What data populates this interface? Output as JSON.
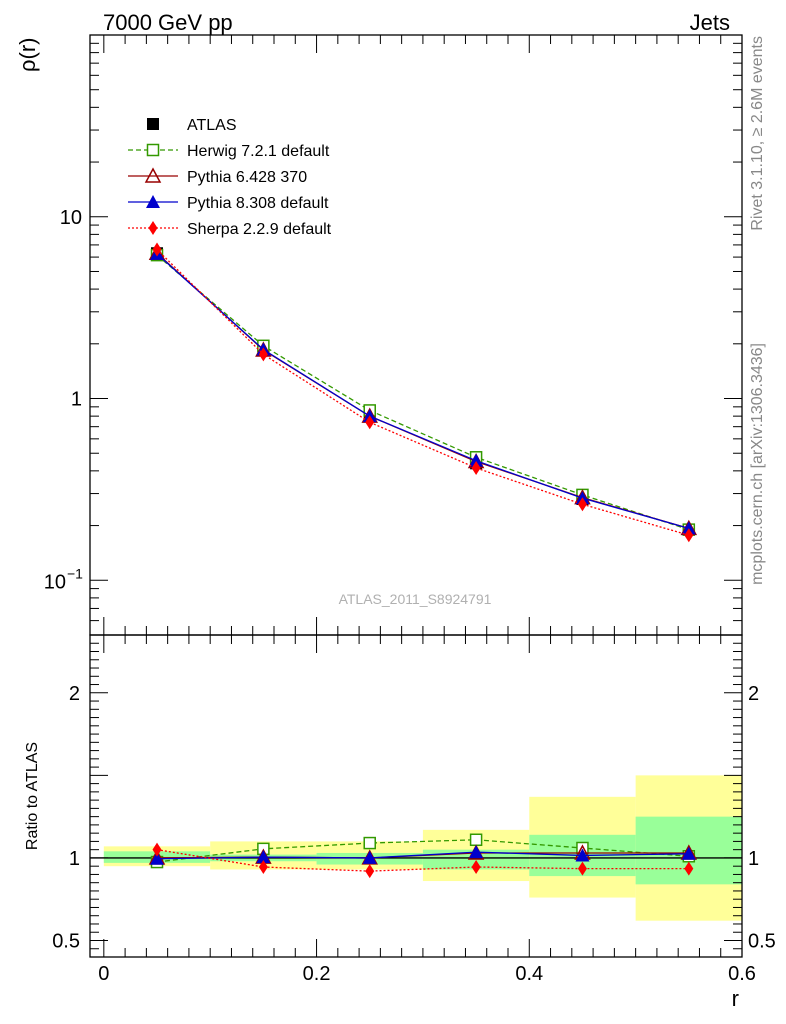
{
  "header": {
    "left": "7000 GeV pp",
    "right": "Jets"
  },
  "side_text": {
    "top": "Rivet 3.1.10, ≥ 2.6M events",
    "bottom": "mcplots.cern.ch [arXiv:1306.3436]"
  },
  "chart_data": [
    {
      "type": "line",
      "panel": "main",
      "ylabel": "ρ(r)",
      "yscale": "log",
      "ylim": [
        0.05,
        100
      ],
      "xlim": [
        -0.013,
        0.6
      ],
      "watermark": "ATLAS_2011_S8924791",
      "y_ticks": [
        {
          "value": 10,
          "label": "10"
        },
        {
          "value": 1,
          "label": "1"
        },
        {
          "value": 0.1,
          "label_base": "10",
          "label_exp": "−1"
        }
      ],
      "legend_position": "top-left",
      "x": [
        0.05,
        0.15,
        0.25,
        0.35,
        0.45,
        0.55
      ],
      "series": [
        {
          "name": "ATLAS",
          "color": "#000000",
          "marker": "filled-square",
          "line": "none",
          "values": [
            6.3,
            1.85,
            0.8,
            0.44,
            0.28,
            0.19
          ]
        },
        {
          "name": "Herwig 7.2.1 default",
          "color": "#339900",
          "marker": "open-square",
          "line": "dashed",
          "values": [
            6.15,
            1.95,
            0.86,
            0.475,
            0.295,
            0.19
          ]
        },
        {
          "name": "Pythia 6.428 370",
          "color": "#990000",
          "marker": "open-triangle",
          "line": "solid",
          "values": [
            6.3,
            1.85,
            0.8,
            0.45,
            0.285,
            0.193
          ]
        },
        {
          "name": "Pythia 8.308 default",
          "color": "#0000cc",
          "marker": "filled-triangle",
          "line": "solid",
          "values": [
            6.25,
            1.86,
            0.8,
            0.455,
            0.283,
            0.193
          ]
        },
        {
          "name": "Sherpa 2.2.9 default",
          "color": "#ff0000",
          "marker": "filled-diamond",
          "line": "dotted",
          "values": [
            6.6,
            1.75,
            0.74,
            0.415,
            0.262,
            0.177
          ]
        }
      ]
    },
    {
      "type": "line",
      "panel": "ratio",
      "ylabel": "Ratio to ATLAS",
      "xlabel": "r",
      "ylim": [
        0.4,
        2.35
      ],
      "xlim": [
        -0.013,
        0.6
      ],
      "y_ticks": [
        {
          "value": 0.5,
          "label": "0.5"
        },
        {
          "value": 1,
          "label": "1"
        },
        {
          "value": 2,
          "label": "2"
        }
      ],
      "x_ticks": [
        {
          "value": 0,
          "label": "0"
        },
        {
          "value": 0.2,
          "label": "0.2"
        },
        {
          "value": 0.4,
          "label": "0.4"
        },
        {
          "value": 0.6,
          "label": "0.6"
        }
      ],
      "bands": [
        {
          "x0": 0.0,
          "x1": 0.1,
          "stat": [
            0.97,
            1.04
          ],
          "total": [
            0.95,
            1.07
          ]
        },
        {
          "x0": 0.1,
          "x1": 0.2,
          "stat": [
            0.98,
            1.02
          ],
          "total": [
            0.93,
            1.1
          ]
        },
        {
          "x0": 0.2,
          "x1": 0.3,
          "stat": [
            0.96,
            1.03
          ],
          "total": [
            0.93,
            1.1
          ]
        },
        {
          "x0": 0.3,
          "x1": 0.4,
          "stat": [
            0.93,
            1.05
          ],
          "total": [
            0.86,
            1.17
          ]
        },
        {
          "x0": 0.4,
          "x1": 0.5,
          "stat": [
            0.89,
            1.14
          ],
          "total": [
            0.76,
            1.37
          ]
        },
        {
          "x0": 0.5,
          "x1": 0.6,
          "stat": [
            0.84,
            1.25
          ],
          "total": [
            0.62,
            1.5
          ]
        }
      ],
      "band_colors": {
        "stat": "#99ff99",
        "total": "#ffff99"
      },
      "x": [
        0.05,
        0.15,
        0.25,
        0.35,
        0.45,
        0.55
      ],
      "series": [
        {
          "name": "Herwig 7.2.1 default",
          "color": "#339900",
          "marker": "open-square",
          "line": "dashed",
          "values": [
            0.975,
            1.055,
            1.09,
            1.11,
            1.06,
            1.01
          ]
        },
        {
          "name": "Pythia 6.428 370",
          "color": "#990000",
          "marker": "open-triangle",
          "line": "solid",
          "values": [
            1.0,
            1.005,
            1.0,
            1.03,
            1.03,
            1.03
          ]
        },
        {
          "name": "Pythia 8.308 default",
          "color": "#0000cc",
          "marker": "filled-triangle",
          "line": "solid",
          "values": [
            0.995,
            1.005,
            1.0,
            1.035,
            1.015,
            1.025
          ]
        },
        {
          "name": "Sherpa 2.2.9 default",
          "color": "#ff0000",
          "marker": "filled-diamond",
          "line": "dotted",
          "values": [
            1.05,
            0.945,
            0.92,
            0.945,
            0.935,
            0.935
          ]
        }
      ]
    }
  ]
}
